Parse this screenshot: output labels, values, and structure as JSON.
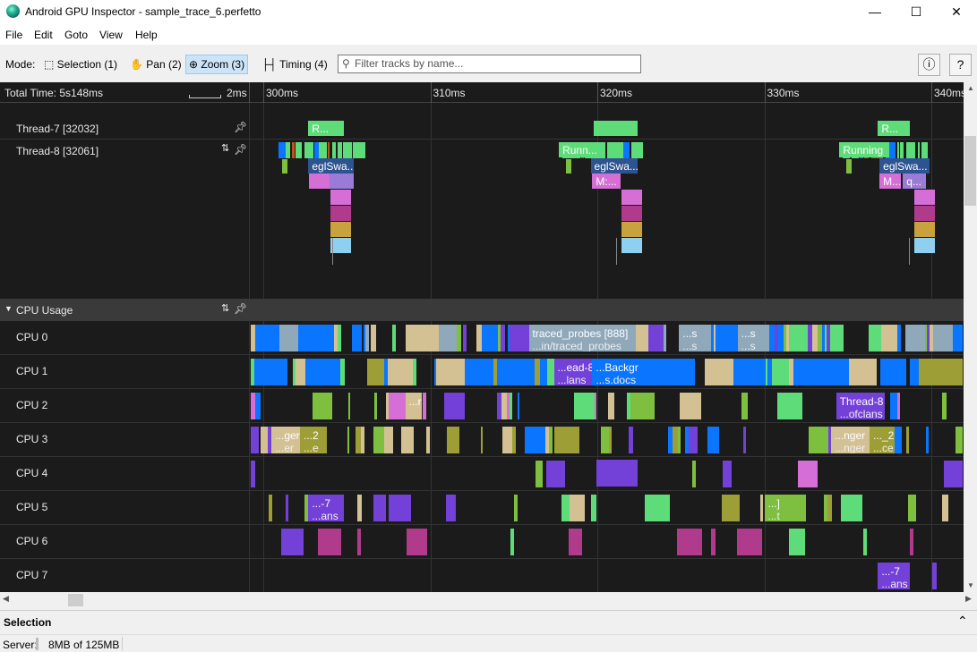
{
  "window": {
    "title": "Android GPU Inspector - sample_trace_6.perfetto",
    "minimize": "—",
    "maximize": "☐",
    "close": "✕"
  },
  "menu": [
    "File",
    "Edit",
    "Goto",
    "View",
    "Help"
  ],
  "toolbar": {
    "mode_label": "Mode:",
    "modes": [
      "Selection (1)",
      "Pan (2)",
      "Zoom (3)",
      "Timing (4)"
    ],
    "active_mode": "Zoom (3)",
    "filter_placeholder": "Filter tracks by name...",
    "info": "ⓘ",
    "help": "?"
  },
  "timeline": {
    "total_time": "Total Time: 5s148ms",
    "scale": "2ms",
    "ticks": [
      {
        "ms": 300,
        "label": "300ms"
      },
      {
        "ms": 310,
        "label": "310ms"
      },
      {
        "ms": 320,
        "label": "320ms"
      },
      {
        "ms": 330,
        "label": "330ms"
      },
      {
        "ms": 340,
        "label": "340ms"
      }
    ]
  },
  "threads": [
    {
      "name": "Thread-7 [32032]",
      "slices": [
        {
          "start": 302.7,
          "end": 304.8,
          "depth": 0,
          "color": "#5fdc7a",
          "text": "R..."
        },
        {
          "start": 319.8,
          "end": 322.4,
          "depth": 0,
          "color": "#5fdc7a",
          "text": ""
        },
        {
          "start": 336.8,
          "end": 338.7,
          "depth": 0,
          "color": "#5fdc7a",
          "text": "R..."
        }
      ]
    },
    {
      "name": "Thread-8 [32061]",
      "slices": [
        {
          "start": 317.7,
          "end": 320.2,
          "depth": 0,
          "color": "#5fdc7a",
          "text": "Runn..."
        },
        {
          "start": 334.5,
          "end": 337.5,
          "depth": 0,
          "color": "#5fdc7a",
          "text": "Running"
        },
        {
          "start": 302.7,
          "end": 305.4,
          "depth": 1,
          "color": "#2e5391",
          "text": "eglSwa..."
        },
        {
          "start": 319.6,
          "end": 322.4,
          "depth": 1,
          "color": "#2e5391",
          "text": "eglSwa..."
        },
        {
          "start": 336.9,
          "end": 339.9,
          "depth": 1,
          "color": "#2e5391",
          "text": "eglSwa..."
        },
        {
          "start": 319.7,
          "end": 321.4,
          "depth": 2,
          "color": "#d56fd5",
          "text": "M:..."
        },
        {
          "start": 336.9,
          "end": 338.2,
          "depth": 2,
          "color": "#d56fd5",
          "text": "M..."
        },
        {
          "start": 338.3,
          "end": 339.7,
          "depth": 2,
          "color": "#9a7bd6",
          "text": "q..."
        }
      ]
    }
  ],
  "cpu": {
    "header": "CPU Usage",
    "rows": [
      {
        "name": "CPU 0",
        "slices": [
          {
            "start": 315.9,
            "end": 322.3,
            "color": "#8fa8ba",
            "text": "traced_probes [888]",
            "sub": "...in/traced_probes"
          },
          {
            "start": 324.9,
            "end": 326.8,
            "color": "#8fa8ba",
            "text": "...s",
            "sub": "...s"
          },
          {
            "start": 328.4,
            "end": 330.3,
            "color": "#8fa8ba",
            "text": "...s",
            "sub": "...s"
          }
        ]
      },
      {
        "name": "CPU 1",
        "slices": [
          {
            "start": 317.4,
            "end": 319.7,
            "color": "#7340d8",
            "text": "...ead-8",
            "sub": "...lans"
          },
          {
            "start": 319.7,
            "end": 324.2,
            "color": "#0a75ff",
            "text": "...Backgr",
            "sub": "...s.docs"
          }
        ]
      },
      {
        "name": "CPU 2",
        "slices": [
          {
            "start": 308.5,
            "end": 309.5,
            "color": "#d4c193",
            "text": "...r",
            "sub": ""
          },
          {
            "start": 334.3,
            "end": 337.2,
            "color": "#7340d8",
            "text": "Thread-8",
            "sub": "...ofclans"
          }
        ]
      },
      {
        "name": "CPU 3",
        "slices": [
          {
            "start": 300.5,
            "end": 302.2,
            "color": "#d4c193",
            "text": "...ger",
            "sub": "...er"
          },
          {
            "start": 302.2,
            "end": 303.8,
            "color": "#9e9e36",
            "text": "...2",
            "sub": "...e"
          },
          {
            "start": 334.0,
            "end": 336.3,
            "color": "#d4c193",
            "text": "...nger",
            "sub": "...nger"
          },
          {
            "start": 336.3,
            "end": 337.8,
            "color": "#9e9e36",
            "text": "..._2",
            "sub": "...ce"
          }
        ]
      },
      {
        "name": "CPU 4",
        "slices": []
      },
      {
        "name": "CPU 5",
        "slices": [
          {
            "start": 302.7,
            "end": 304.8,
            "color": "#7340d8",
            "text": "...-7",
            "sub": "...ans"
          },
          {
            "start": 330.0,
            "end": 332.5,
            "color": "#7fbf3f",
            "text": "...]",
            "sub": "...t"
          }
        ]
      },
      {
        "name": "CPU 6",
        "slices": []
      },
      {
        "name": "CPU 7",
        "slices": [
          {
            "start": 336.8,
            "end": 338.7,
            "color": "#7340d8",
            "text": "...-7",
            "sub": "...ans"
          }
        ]
      }
    ]
  },
  "selection": {
    "title": "Selection"
  },
  "status": {
    "server_label": "Server:",
    "memory": "8MB of 125MB"
  },
  "colors": {
    "accent": "#cce4f7",
    "running": "#5fdc7a",
    "cpu_blue": "#0a75ff",
    "purple": "#7340d8",
    "green": "#7fbf3f",
    "tan": "#d4c193",
    "magenta": "#b03a8c"
  }
}
